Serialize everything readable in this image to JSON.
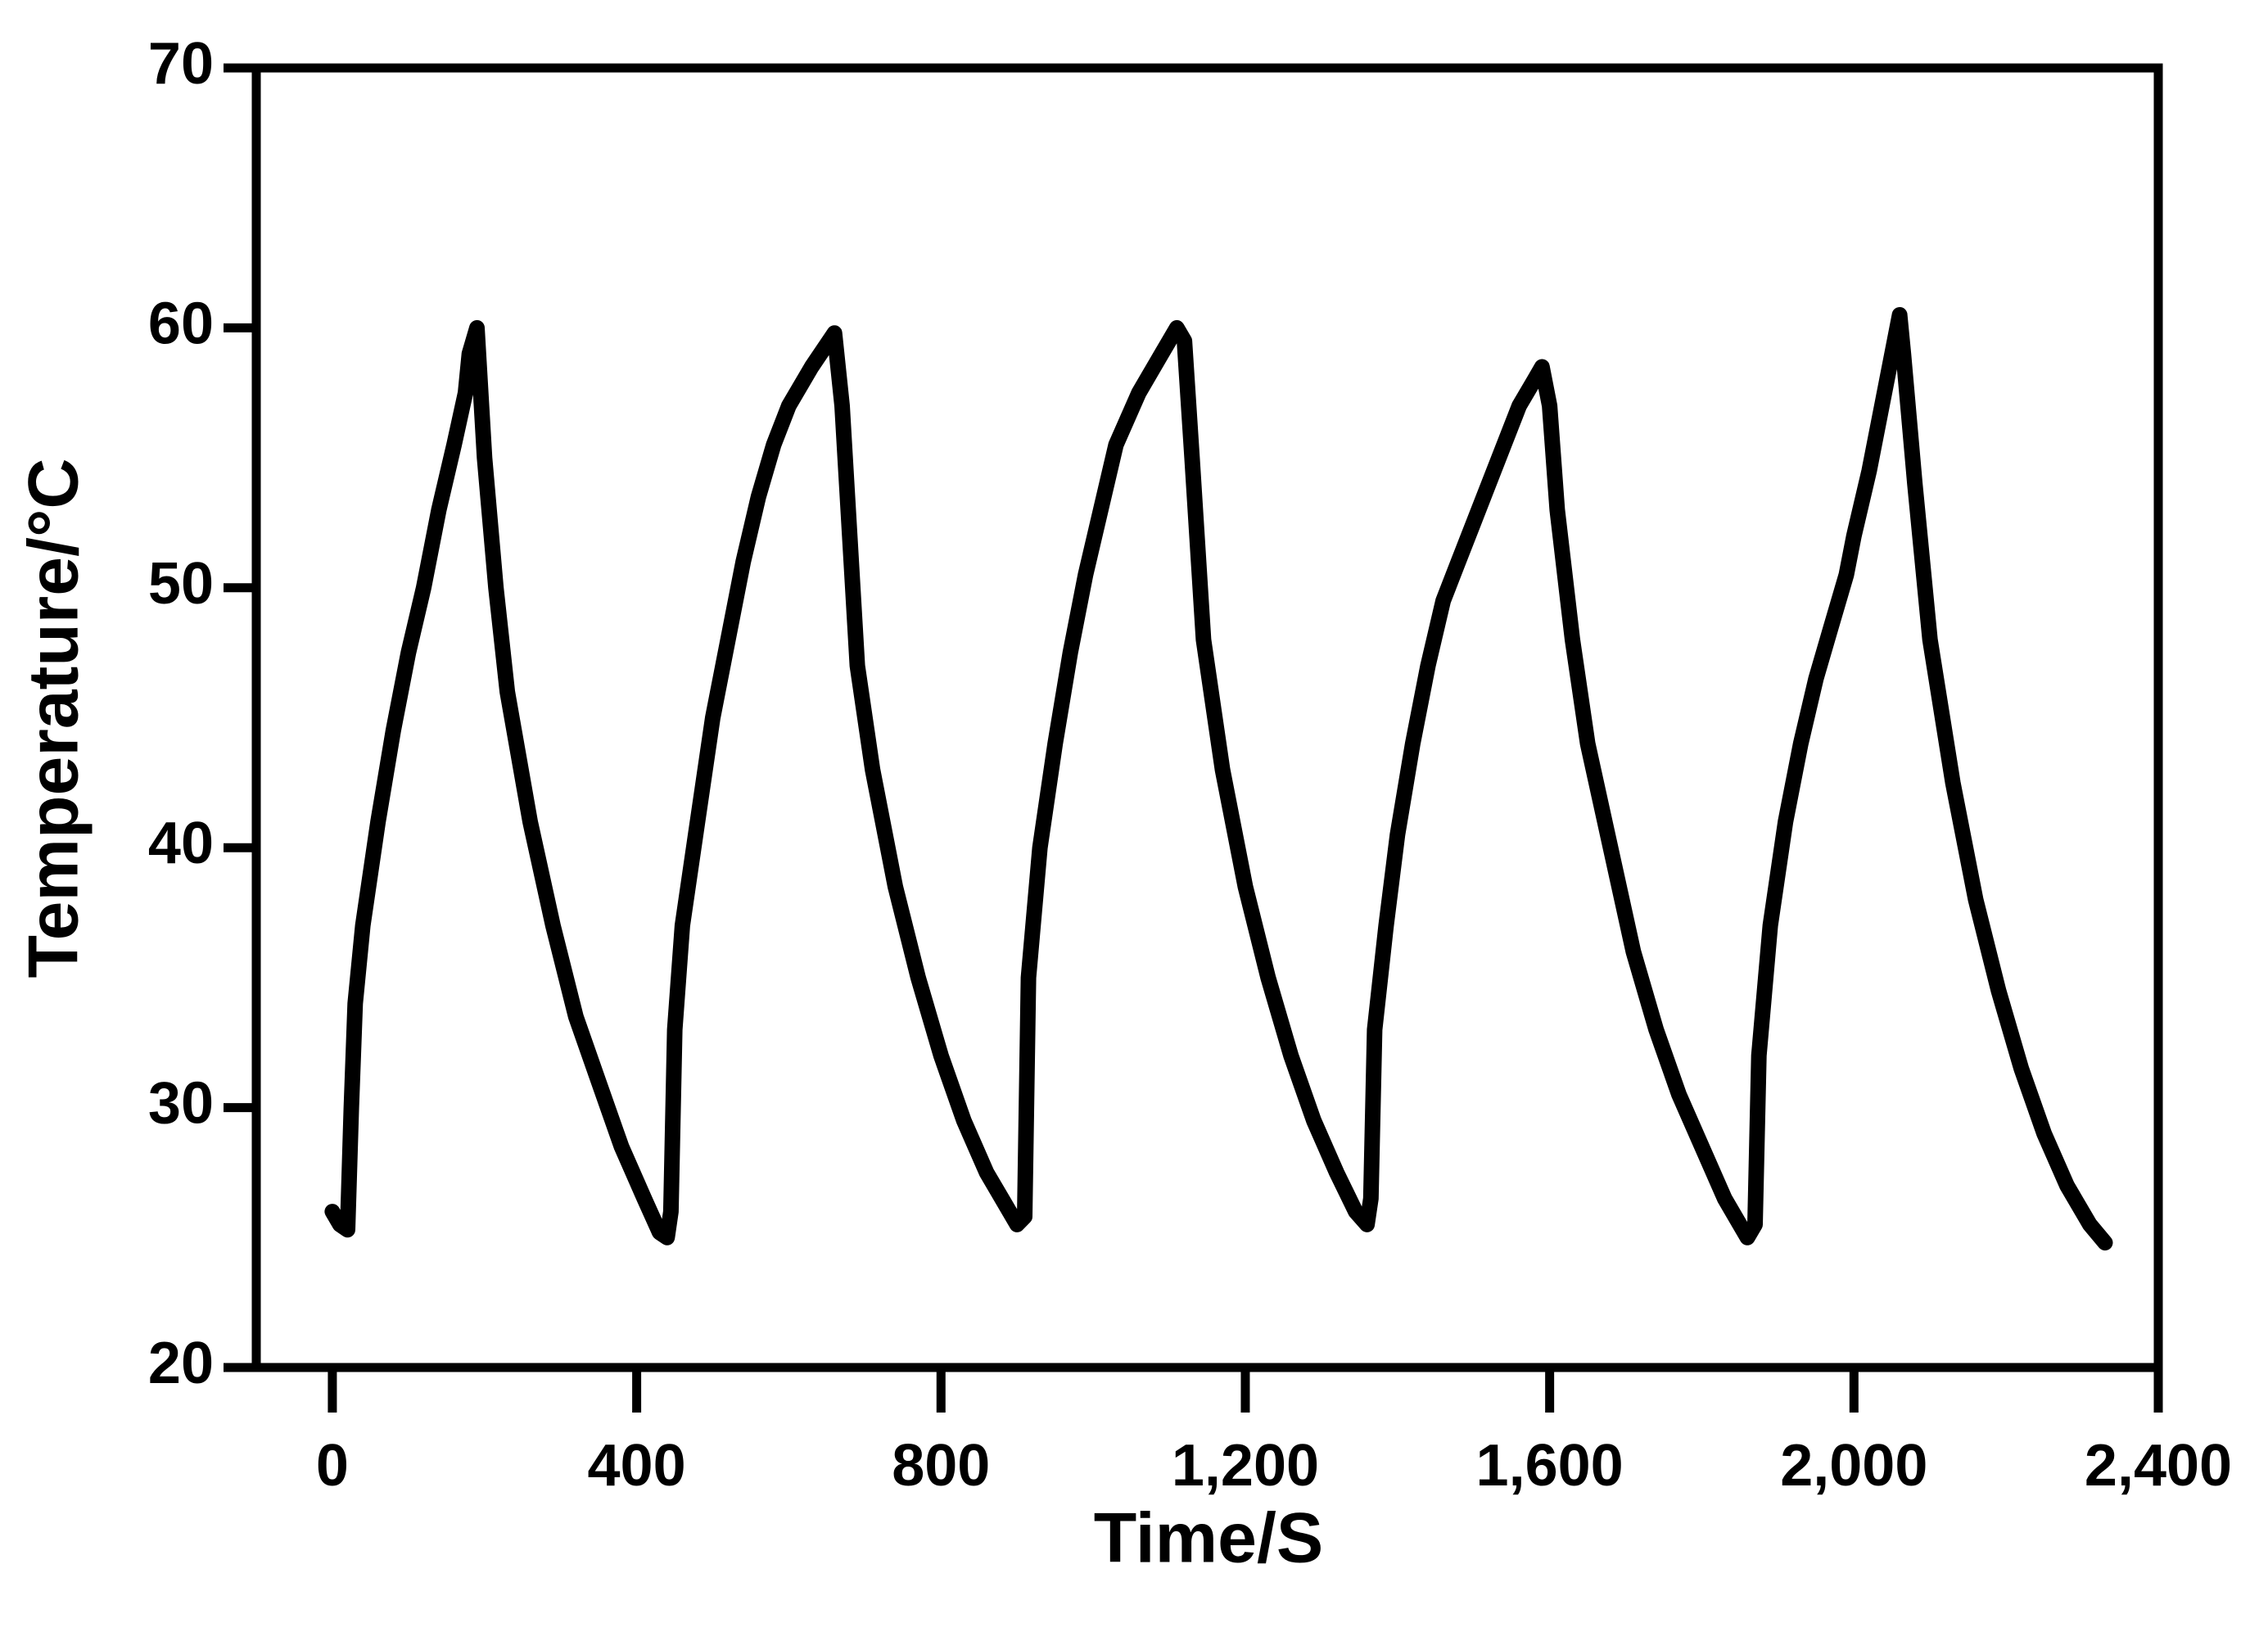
{
  "chart_data": {
    "type": "line",
    "xlabel": "Time/S",
    "ylabel": "Temperature/°C",
    "color": "#000000",
    "xlim": [
      -100,
      2400
    ],
    "xticks": [
      0,
      400,
      800,
      {
        "value": 1200,
        "label": "1,200"
      },
      {
        "value": 1600,
        "label": "1,600"
      },
      {
        "value": 2000,
        "label": "2,000"
      },
      {
        "value": 2400,
        "label": "2,400"
      }
    ],
    "ylim": [
      20,
      70
    ],
    "yticks": [
      20,
      30,
      40,
      50,
      60,
      70
    ],
    "x": [
      0,
      10,
      20,
      25,
      30,
      40,
      60,
      80,
      100,
      120,
      140,
      160,
      175,
      180,
      190,
      200,
      215,
      230,
      260,
      290,
      320,
      350,
      380,
      410,
      430,
      440,
      445,
      450,
      460,
      480,
      500,
      520,
      540,
      560,
      580,
      600,
      630,
      660,
      670,
      680,
      690,
      710,
      740,
      770,
      800,
      830,
      860,
      880,
      900,
      910,
      915,
      930,
      950,
      970,
      990,
      1010,
      1030,
      1060,
      1090,
      1110,
      1120,
      1130,
      1145,
      1170,
      1200,
      1230,
      1260,
      1290,
      1320,
      1345,
      1360,
      1365,
      1370,
      1385,
      1400,
      1420,
      1440,
      1460,
      1480,
      1500,
      1520,
      1540,
      1560,
      1580,
      1590,
      1600,
      1610,
      1630,
      1650,
      1680,
      1710,
      1740,
      1770,
      1800,
      1830,
      1850,
      1860,
      1870,
      1875,
      1890,
      1910,
      1930,
      1950,
      1970,
      1990,
      2000,
      2020,
      2040,
      2060,
      2065,
      2080,
      2100,
      2130,
      2160,
      2190,
      2220,
      2250,
      2280,
      2310,
      2330
    ],
    "values": [
      26,
      25.5,
      25.3,
      30,
      34,
      37,
      41,
      44.5,
      47.5,
      50,
      53,
      55.5,
      57.5,
      59,
      60,
      55,
      50,
      46,
      41,
      37,
      33.5,
      31,
      28.5,
      26.5,
      25.2,
      25,
      26,
      33,
      37,
      41,
      45,
      48,
      51,
      53.5,
      55.5,
      57,
      58.5,
      59.8,
      57,
      52,
      47,
      43,
      38.5,
      35,
      32,
      29.5,
      27.5,
      26.5,
      25.5,
      25.8,
      35,
      40,
      44,
      47.5,
      50.5,
      53,
      55.5,
      57.5,
      59,
      60,
      59.5,
      55,
      48,
      43,
      38.5,
      35,
      32,
      29.5,
      27.5,
      26,
      25.5,
      26.5,
      33,
      37,
      40.5,
      44,
      47,
      49.5,
      51,
      52.5,
      54,
      55.5,
      57,
      58,
      58.5,
      57,
      53,
      48,
      44,
      40,
      36,
      33,
      30.5,
      28.5,
      26.5,
      25.5,
      25,
      25.5,
      32,
      37,
      41,
      44,
      46.5,
      48.5,
      50.5,
      52,
      54.5,
      57.5,
      60.5,
      59,
      54,
      48,
      42.5,
      38,
      34.5,
      31.5,
      29,
      27,
      25.5,
      24.8
    ]
  }
}
